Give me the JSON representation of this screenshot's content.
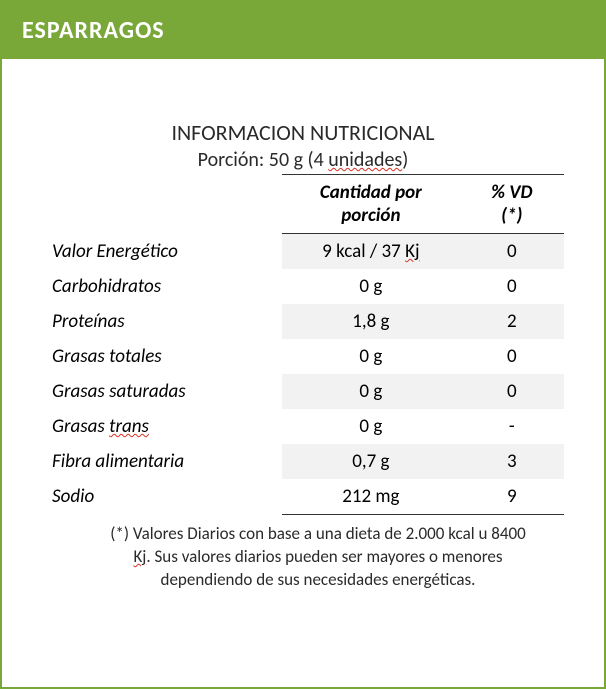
{
  "header": {
    "title": "ESPARRAGOS",
    "bg_color": "#7aa838",
    "text_color": "#ffffff"
  },
  "nutrition": {
    "section_title": "INFORMACION NUTRICIONAL",
    "portion_line_prefix": "Porción: 50 g (4 ",
    "portion_line_squiggle": "unidades",
    "portion_line_suffix": ")",
    "columns": {
      "label": "",
      "amount_line1": "Cantidad por",
      "amount_line2": "porción",
      "vd_line1": "% VD",
      "vd_line2": "(*)"
    },
    "rows": [
      {
        "label": "Valor Energético",
        "amount_pre": "9 kcal / 37 ",
        "amount_sq": "Kj",
        "amount_post": "",
        "vd": "0",
        "odd": true
      },
      {
        "label": "Carbohidratos",
        "amount_pre": "0 g",
        "amount_sq": "",
        "amount_post": "",
        "vd": "0",
        "odd": false
      },
      {
        "label": "Proteínas",
        "amount_pre": "1,8 g",
        "amount_sq": "",
        "amount_post": "",
        "vd": "2",
        "odd": true
      },
      {
        "label": "Grasas totales",
        "amount_pre": "0 g",
        "amount_sq": "",
        "amount_post": "",
        "vd": "0",
        "odd": false
      },
      {
        "label": "Grasas saturadas",
        "amount_pre": "0 g",
        "amount_sq": "",
        "amount_post": "",
        "vd": "0",
        "odd": true
      },
      {
        "label_pre": "Grasas ",
        "label_sq": "trans",
        "label_post": "",
        "amount_pre": "0 g",
        "amount_sq": "",
        "amount_post": "",
        "vd": "-",
        "odd": false
      },
      {
        "label": "Fibra  alimentaria",
        "amount_pre": "0,7 g",
        "amount_sq": "",
        "amount_post": "",
        "vd": "3",
        "odd": true
      },
      {
        "label": "Sodio",
        "amount_pre": "212 mg",
        "amount_sq": "",
        "amount_post": "",
        "vd": "9",
        "odd": false
      }
    ],
    "footnote_pre": "(*) Valores Diarios con base a una dieta de 2.000 kcal u 8400 ",
    "footnote_sq": "Kj",
    "footnote_post": ". Sus valores diarios pueden ser mayores o menores dependiendo de sus necesidades energéticas."
  },
  "style": {
    "border_color": "#7aa838",
    "zebra_color": "#f2f2f2",
    "rule_color": "#333333",
    "squiggle_color": "#d93025"
  }
}
